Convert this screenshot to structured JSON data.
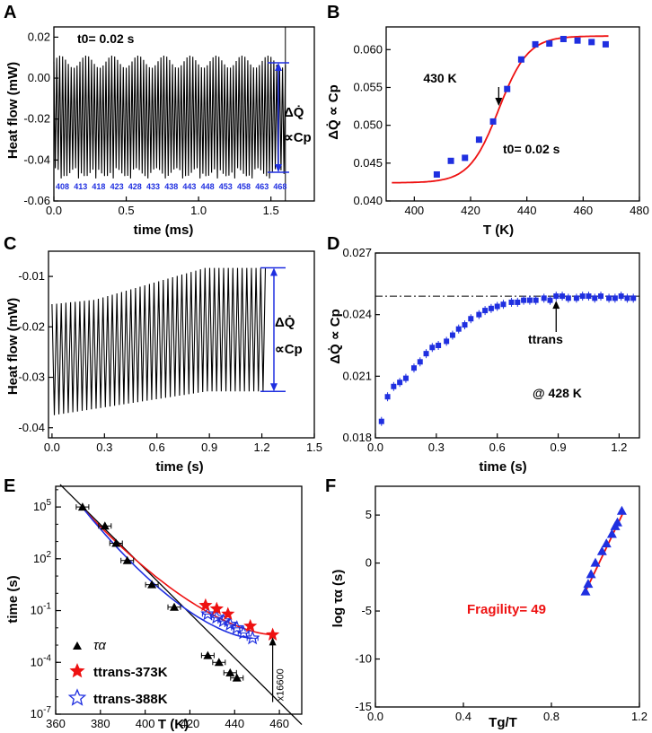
{
  "colors": {
    "blue": "#1f2fe0",
    "red": "#ee1111",
    "black": "#000000"
  },
  "chart_data": [
    {
      "panel": "A",
      "type": "line",
      "xlabel": "time (ms)",
      "ylabel": "Heat flow (mW)",
      "xlim": [
        0,
        1.8
      ],
      "ylim": [
        -0.06,
        0.025
      ],
      "xticks": [
        0.0,
        0.5,
        1.0,
        1.5
      ],
      "yticks": [
        0.02,
        0.0,
        -0.02,
        -0.04,
        -0.06
      ],
      "xtick_labels": [
        "0.0",
        "0.5",
        "1.0",
        "1.5"
      ],
      "ytick_labels": [
        "0.02",
        "0.00",
        "-0.02",
        "-0.04",
        "-0.06"
      ],
      "annotation": "t0= 0.02 s",
      "segment_temps": [
        "408",
        "413",
        "418",
        "423",
        "428",
        "433",
        "438",
        "443",
        "448",
        "453",
        "458",
        "463",
        "468"
      ],
      "oscillation": {
        "t_end": 1.6,
        "cycles": 80,
        "upper": 0.008,
        "lower": -0.046,
        "min_lower": -0.049
      },
      "bracket_label": "ΔQ̇",
      "bracket_label2": "∝Cp"
    },
    {
      "panel": "B",
      "type": "scatter+fit",
      "xlabel": "T (K)",
      "ylabel": "ΔQ̇ ∝ Cp",
      "xlim": [
        390,
        480
      ],
      "ylim": [
        0.04,
        0.063
      ],
      "xticks": [
        400,
        420,
        440,
        460,
        480
      ],
      "yticks": [
        0.04,
        0.045,
        0.05,
        0.055,
        0.06
      ],
      "xtick_labels": [
        "400",
        "420",
        "440",
        "460",
        "480"
      ],
      "ytick_labels": [
        "0.040",
        "0.045",
        "0.050",
        "0.055",
        "0.060"
      ],
      "points": {
        "T": [
          408,
          413,
          418,
          423,
          428,
          433,
          438,
          443,
          448,
          453,
          458,
          463,
          468
        ],
        "value": [
          0.0435,
          0.0453,
          0.0457,
          0.0481,
          0.0505,
          0.0548,
          0.0587,
          0.0607,
          0.0608,
          0.0614,
          0.0612,
          0.061,
          0.0607
        ]
      },
      "fit": {
        "low": 0.0424,
        "high": 0.0618,
        "T_mid": 430,
        "width": 5.2
      },
      "arrow_label": "430 K",
      "annotation": "t0= 0.02 s"
    },
    {
      "panel": "C",
      "type": "line",
      "xlabel": "time (s)",
      "ylabel": "Heat flow (mW)",
      "xlim": [
        -0.02,
        1.5
      ],
      "ylim": [
        -0.042,
        -0.005
      ],
      "xticks": [
        0.0,
        0.3,
        0.6,
        0.9,
        1.2,
        1.5
      ],
      "yticks": [
        -0.01,
        -0.02,
        -0.03,
        -0.04
      ],
      "xtick_labels": [
        "0.0",
        "0.3",
        "0.6",
        "0.9",
        "1.2",
        "1.5"
      ],
      "ytick_labels": [
        "-0.01",
        "-0.02",
        "-0.03",
        "-0.04"
      ],
      "oscillation": {
        "t_end": 1.22,
        "cycles": 46,
        "upper_start": -0.0155,
        "upper_end": -0.0083,
        "lower_start": -0.0375,
        "lower_end": -0.0328
      },
      "bracket_label": "ΔQ̇",
      "bracket_label2": "∝Cp"
    },
    {
      "panel": "D",
      "type": "scatter",
      "xlabel": "time (s)",
      "ylabel": "ΔQ̇ ∝ Cp",
      "xlim": [
        0,
        1.3
      ],
      "ylim": [
        0.018,
        0.027
      ],
      "xticks": [
        0.0,
        0.3,
        0.6,
        0.9,
        1.2
      ],
      "yticks": [
        0.018,
        0.021,
        0.024,
        0.027
      ],
      "xtick_labels": [
        "0.0",
        "0.3",
        "0.6",
        "0.9",
        "1.2"
      ],
      "ytick_labels": [
        "0.018",
        "0.021",
        "0.024",
        "0.027"
      ],
      "points": {
        "time": [
          0.03,
          0.06,
          0.09,
          0.12,
          0.15,
          0.19,
          0.22,
          0.25,
          0.28,
          0.31,
          0.35,
          0.38,
          0.41,
          0.44,
          0.47,
          0.51,
          0.54,
          0.57,
          0.6,
          0.63,
          0.67,
          0.7,
          0.73,
          0.76,
          0.79,
          0.83,
          0.86,
          0.89,
          0.92,
          0.95,
          0.99,
          1.02,
          1.05,
          1.08,
          1.11,
          1.15,
          1.18,
          1.21,
          1.24,
          1.27
        ],
        "value": [
          0.0188,
          0.02,
          0.0205,
          0.0207,
          0.0209,
          0.0214,
          0.0217,
          0.0221,
          0.0224,
          0.0225,
          0.0227,
          0.023,
          0.0233,
          0.0235,
          0.0238,
          0.024,
          0.0242,
          0.0243,
          0.0244,
          0.0245,
          0.0246,
          0.0246,
          0.0247,
          0.0247,
          0.0247,
          0.0248,
          0.0247,
          0.0249,
          0.0249,
          0.0248,
          0.0248,
          0.0249,
          0.0249,
          0.0248,
          0.0249,
          0.0248,
          0.0248,
          0.0249,
          0.0248,
          0.0248
        ]
      },
      "plateau": 0.0249,
      "t_trans": 0.89,
      "arrow_label": "ttrans",
      "annotation": "@ 428 K"
    },
    {
      "panel": "E",
      "type": "scatter+fit",
      "yscale": "log",
      "xlabel": "T (K)",
      "ylabel": "time (s)",
      "xlim": [
        360,
        470
      ],
      "ylim_log10": [
        -7,
        6.2
      ],
      "xticks": [
        360,
        380,
        400,
        420,
        440,
        460
      ],
      "yticks_log10": [
        5,
        2,
        -1,
        -4,
        -7
      ],
      "xtick_labels": [
        "360",
        "380",
        "400",
        "420",
        "440",
        "460"
      ],
      "tau_alpha": {
        "T": [
          372,
          382,
          387,
          392,
          403,
          413,
          428,
          433,
          438,
          441
        ],
        "log10_time": [
          5.0,
          3.9,
          2.9,
          1.9,
          0.5,
          -0.8,
          -3.6,
          -4.0,
          -4.6,
          -4.9
        ]
      },
      "t_trans_373K": {
        "T": [
          427,
          432,
          437,
          447,
          457
        ],
        "log10_time": [
          -0.7,
          -0.9,
          -1.2,
          -1.9,
          -2.4
        ]
      },
      "t_trans_388K": {
        "T": [
          428,
          432,
          435,
          438,
          441,
          444,
          448
        ],
        "log10_time": [
          -1.2,
          -1.4,
          -1.6,
          -1.8,
          -2.0,
          -2.3,
          -2.6
        ]
      },
      "line_black": [
        [
          362,
          6.3
        ],
        [
          470,
          -7.6
        ]
      ],
      "legend": [
        "τα",
        "ttrans-373K",
        "ttrans-388K"
      ],
      "arrow_label": "x16600"
    },
    {
      "panel": "F",
      "type": "scatter+line",
      "xlabel": "Tg/T",
      "ylabel": "log τα (s)",
      "xlim": [
        0.0,
        1.2
      ],
      "ylim": [
        -15,
        8
      ],
      "xticks": [
        0.0,
        0.4,
        0.8,
        1.2
      ],
      "yticks": [
        5,
        0,
        -5,
        -10,
        -15
      ],
      "xtick_labels": [
        "0.0",
        "0.4",
        "0.8",
        "1.2"
      ],
      "ytick_labels": [
        "5",
        "0",
        "-5",
        "-10",
        "-15"
      ],
      "points": {
        "x": [
          0.955,
          0.967,
          0.98,
          1.0,
          1.03,
          1.05,
          1.075,
          1.09,
          1.1,
          1.12
        ],
        "y": [
          -3.0,
          -2.2,
          -1.2,
          0.0,
          1.2,
          2.0,
          3.0,
          3.8,
          4.2,
          5.4
        ]
      },
      "fit_line": [
        [
          0.95,
          -3.2
        ],
        [
          1.125,
          5.2
        ]
      ],
      "annotation": "Fragility= 49"
    }
  ]
}
